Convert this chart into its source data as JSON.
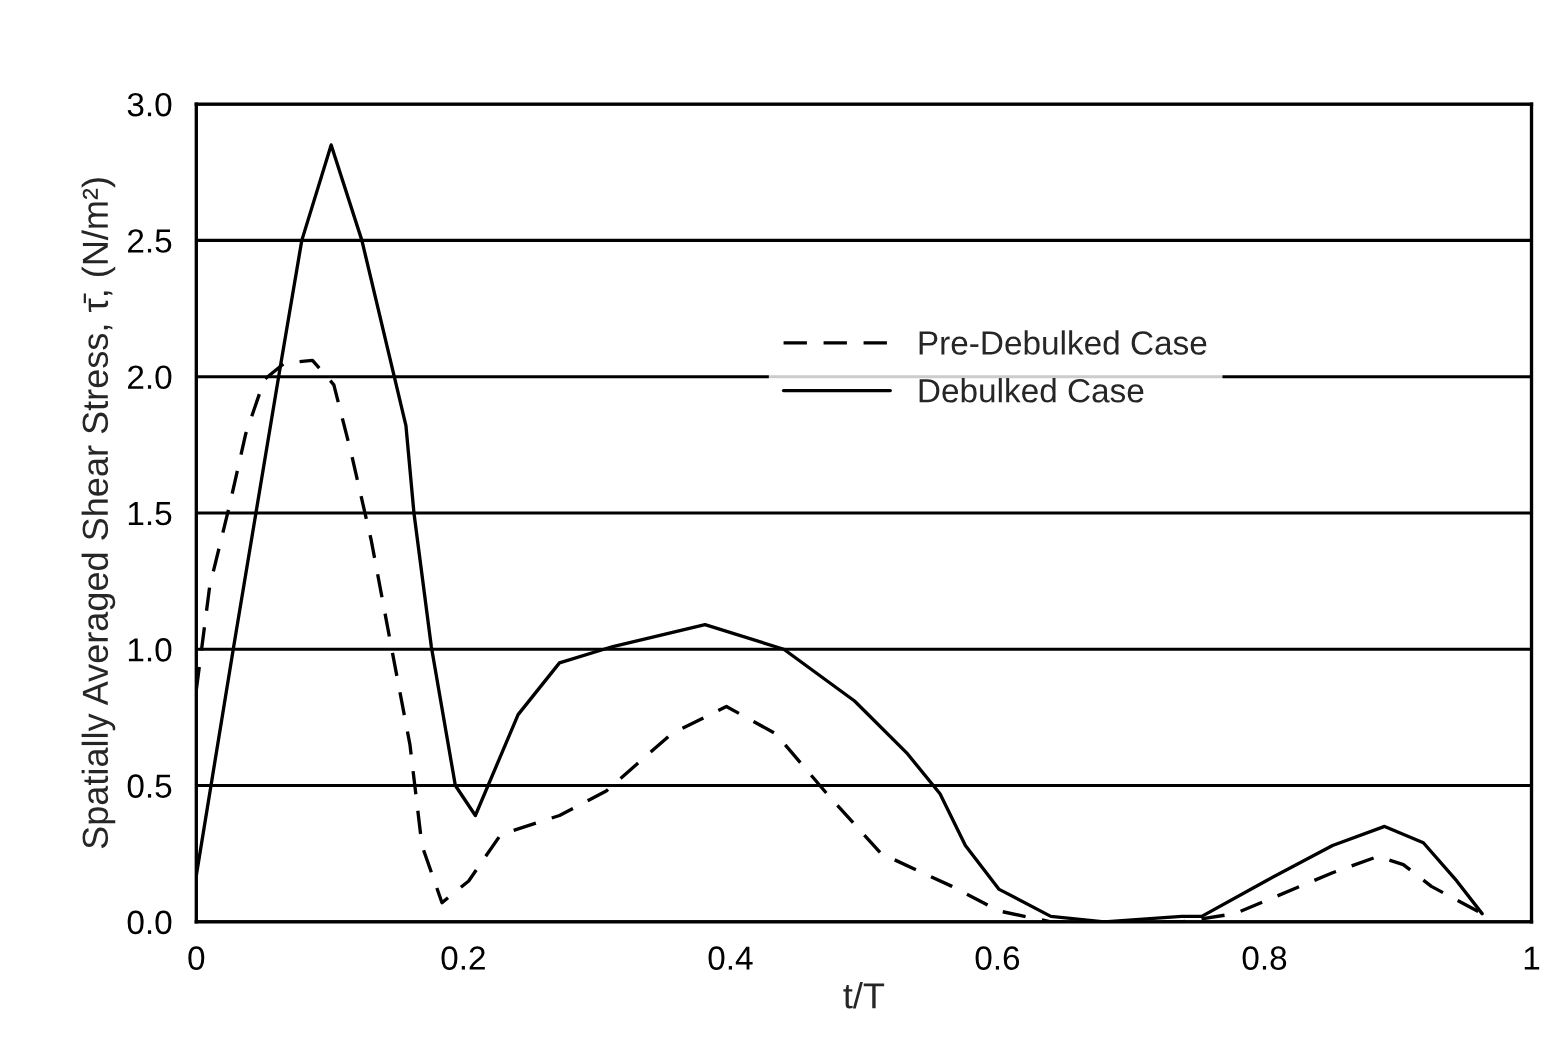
{
  "chart_data": {
    "type": "line",
    "xlabel": "t/T",
    "ylabel": "Spatially Averaged Shear Stress, τ̄, (N/m²)",
    "xlim": [
      0,
      1
    ],
    "xticks": [
      0,
      0.2,
      0.4,
      0.6,
      0.8,
      1
    ],
    "ylim": [
      0,
      3.0
    ],
    "yticks": [
      {
        "value": 0,
        "label": "0.0"
      },
      0.5,
      {
        "value": 1,
        "label": "1.0"
      },
      1.5,
      {
        "value": 2,
        "label": "2.0"
      },
      2.5,
      {
        "value": 3,
        "label": "3.0"
      }
    ],
    "grid": "y",
    "legend": "upper right",
    "marker": "none",
    "series": [
      {
        "name": "Pre-Debulked Case",
        "color": "#000000",
        "line_style": "dashed",
        "x": [
          0,
          0.01,
          0.025,
          0.037,
          0.051,
          0.066,
          0.087,
          0.103,
          0.116,
          0.131,
          0.146,
          0.16,
          0.169,
          0.184,
          0.204,
          0.228,
          0.272,
          0.307,
          0.356,
          0.397,
          0.434,
          0.474,
          0.513,
          0.566,
          0.601,
          0.64,
          0.68,
          0.738,
          0.778,
          0.851,
          0.885,
          0.904,
          0.925,
          0.963
        ],
        "values": [
          0.85,
          1.23,
          1.53,
          1.79,
          1.99,
          2.05,
          2.06,
          1.97,
          1.72,
          1.4,
          1.01,
          0.65,
          0.28,
          0.07,
          0.15,
          0.32,
          0.39,
          0.48,
          0.69,
          0.79,
          0.69,
          0.46,
          0.25,
          0.13,
          0.04,
          0.0,
          0.0,
          0.0,
          0.03,
          0.18,
          0.24,
          0.21,
          0.13,
          0.03
        ]
      },
      {
        "name": "Debulked Case",
        "color": "#000000",
        "line_style": "solid",
        "x": [
          0,
          0.028,
          0.062,
          0.079,
          0.101,
          0.124,
          0.157,
          0.163,
          0.176,
          0.194,
          0.209,
          0.241,
          0.272,
          0.312,
          0.381,
          0.44,
          0.493,
          0.532,
          0.557,
          0.576,
          0.601,
          0.64,
          0.68,
          0.738,
          0.753,
          0.801,
          0.851,
          0.89,
          0.919,
          0.944,
          0.963
        ],
        "values": [
          0.17,
          1.01,
          2.01,
          2.5,
          2.85,
          2.5,
          1.82,
          1.5,
          1.01,
          0.5,
          0.39,
          0.76,
          0.95,
          1.01,
          1.09,
          1.0,
          0.81,
          0.62,
          0.47,
          0.28,
          0.12,
          0.02,
          0.0,
          0.02,
          0.02,
          0.15,
          0.28,
          0.35,
          0.29,
          0.15,
          0.03
        ]
      }
    ]
  }
}
